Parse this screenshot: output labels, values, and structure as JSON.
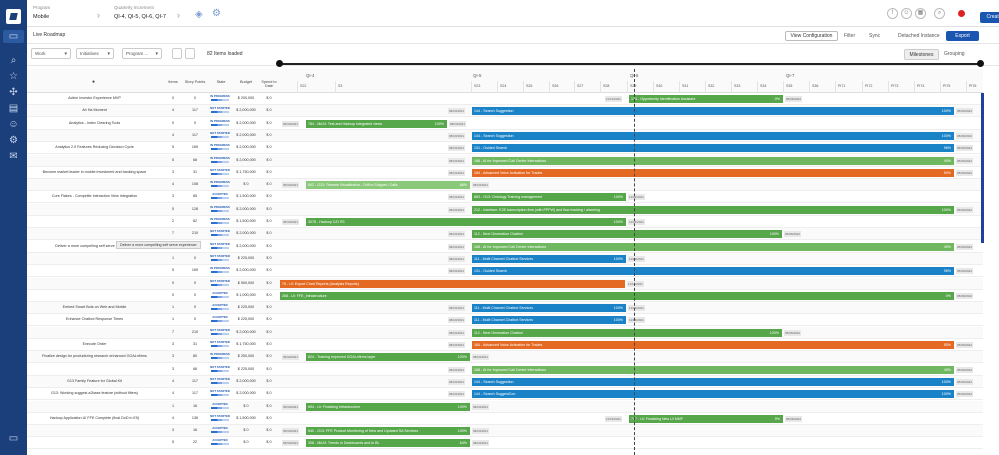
{
  "header": {
    "program_label": "Program",
    "program_value": "Mobile",
    "pi_label": "Quarterly Increment",
    "pi_value": "QI-4, QI-5, QI-6, QI-7",
    "create_label": "Create"
  },
  "subheader": {
    "title": "Live Roadmap",
    "view_configuration": "View Configuration",
    "filter": "Filter",
    "sync": "Sync",
    "detached": "Detached Instance",
    "export": "Export"
  },
  "filters": {
    "work": "Work",
    "initiatives": "Initiatives",
    "program": "Program ...",
    "items_loaded": "82 Items loaded",
    "milestones": "Milestones",
    "grouping": "Grouping"
  },
  "table": {
    "headers": [
      "Items",
      "Story Points",
      "State",
      "Budget",
      "Spend to Date"
    ],
    "rows": [
      {
        "name": "Active Investor Experience MVP",
        "items": "0",
        "sp": "0",
        "state": "IN PROGRESS",
        "budget": "$ 200,000",
        "spend": "$ 0"
      },
      {
        "name": "Ah Ha Moment",
        "items": "4",
        "sp": "117",
        "state": "NOT STARTED",
        "budget": "$ 2,000,000",
        "spend": "$ 0"
      },
      {
        "name": "Analytics - Index Clearing Tools",
        "items": "0",
        "sp": "0",
        "state": "IN PROGRESS",
        "budget": "$ 2,000,000",
        "spend": "$ 0"
      },
      {
        "name": "",
        "items": "4",
        "sp": "117",
        "state": "NOT STARTED",
        "budget": "$ 2,000,000",
        "spend": "$ 0"
      },
      {
        "name": "Analytics 2.0 Features Reducing Decision Cycle",
        "items": "5",
        "sp": "169",
        "state": "IN PROGRESS",
        "budget": "$ 2,000,000",
        "spend": "$ 0"
      },
      {
        "name": "",
        "items": "5",
        "sp": "68",
        "state": "IN PROGRESS",
        "budget": "$ 2,000,000",
        "spend": "$ 0"
      },
      {
        "name": "Become market leader in mobile investment and banking space",
        "items": "3",
        "sp": "31",
        "state": "NOT STARTED",
        "budget": "$ 1,750,000",
        "spend": "$ 0"
      },
      {
        "name": "",
        "items": "4",
        "sp": "108",
        "state": "IN PROGRESS",
        "budget": "$ 0",
        "spend": "$ 0"
      },
      {
        "name": "Core Flakes - Compelite Interaction View Integration",
        "items": "3",
        "sp": "85",
        "state": "ACCEPTED",
        "budget": "$ 1,500,000",
        "spend": "$ 0"
      },
      {
        "name": "",
        "items": "5",
        "sp": "128",
        "state": "IN PROGRESS",
        "budget": "$ 2,000,000",
        "spend": "$ 0"
      },
      {
        "name": "",
        "items": "2",
        "sp": "82",
        "state": "IN PROGRESS",
        "budget": "$ 1,500,000",
        "spend": "$ 0"
      },
      {
        "name": "",
        "items": "7",
        "sp": "210",
        "state": "NOT STARTED",
        "budget": "$ 2,000,000",
        "spend": "$ 0"
      },
      {
        "name": "Deliver a more compelling self serve experience",
        "items": "5",
        "sp": "68",
        "state": "NOT STARTED",
        "budget": "$ 2,000,000",
        "spend": "$ 0"
      },
      {
        "name": "",
        "items": "1",
        "sp": "0",
        "state": "NOT STARTED",
        "budget": "$ 225,000",
        "spend": "$ 0"
      },
      {
        "name": "",
        "items": "5",
        "sp": "169",
        "state": "IN PROGRESS",
        "budget": "$ 2,000,000",
        "spend": "$ 0"
      },
      {
        "name": "",
        "items": "0",
        "sp": "0",
        "state": "NOT STARTED",
        "budget": "$ 500,000",
        "spend": "$ 0"
      },
      {
        "name": "",
        "items": "0",
        "sp": "0",
        "state": "ACCEPTED",
        "budget": "$ 1,000,000",
        "spend": "$ 0"
      },
      {
        "name": "Embed Smart Bots on Web and Mobile",
        "items": "1",
        "sp": "0",
        "state": "ACCEPTED",
        "budget": "$ 225,000",
        "spend": "$ 0"
      },
      {
        "name": "Enhance Chatbot Response Times",
        "items": "1",
        "sp": "0",
        "state": "ACCEPTED",
        "budget": "$ 225,000",
        "spend": "$ 0"
      },
      {
        "name": "",
        "items": "7",
        "sp": "210",
        "state": "NOT STARTED",
        "budget": "$ 2,000,000",
        "spend": "$ 0"
      },
      {
        "name": "Execute Order",
        "items": "3",
        "sp": "31",
        "state": "NOT STARTED",
        "budget": "$ 1,750,000",
        "spend": "$ 0"
      },
      {
        "name": "Finalize design for productizing research enhanced GOALnfirms",
        "items": "3",
        "sp": "80",
        "state": "IN PROGRESS",
        "budget": "$ 250,000",
        "spend": "$ 0"
      },
      {
        "name": "",
        "items": "3",
        "sp": "68",
        "state": "NOT STARTED",
        "budget": "$ 225,000",
        "spend": "$ 0"
      },
      {
        "name": "G13 Family Feature for Global Kit",
        "items": "4",
        "sp": "117",
        "state": "NOT STARTED",
        "budget": "$ 2,000,000",
        "spend": "$ 0"
      },
      {
        "name": "G13: Working suggest a2base feature (without filters)",
        "items": "4",
        "sp": "117",
        "state": "NOT STARTED",
        "budget": "$ 2,000,000",
        "spend": "$ 0"
      },
      {
        "name": "",
        "items": "1",
        "sp": "16",
        "state": "ACCEPTED",
        "budget": "$ 0",
        "spend": "$ 0"
      },
      {
        "name": "Hadoop Application UI FFE Complete (final DoD in E5)",
        "items": "4",
        "sp": "136",
        "state": "NOT STARTED",
        "budget": "$ 1,500,000",
        "spend": "$ 0"
      },
      {
        "name": "",
        "items": "3",
        "sp": "16",
        "state": "ACCEPTED",
        "budget": "$ 0",
        "spend": "$ 0"
      },
      {
        "name": "",
        "items": "5",
        "sp": "22",
        "state": "ACCEPTED",
        "budget": "$ 0",
        "spend": "$ 0"
      }
    ]
  },
  "timeline": {
    "quarters": [
      "QI-4",
      "QI-5",
      "QI-6",
      "QI-7"
    ],
    "sprints": [
      "S22",
      "S3",
      "S23",
      "S24",
      "S25",
      "S26",
      "S27",
      "S28",
      "S29",
      "S30",
      "S31",
      "S32",
      "S33",
      "S34",
      "S35",
      "S36",
      "PI71",
      "PI72",
      "PI73",
      "PI74",
      "PI75",
      "PI76"
    ],
    "bars": [
      {
        "label": "174 - Opportunity Identification Assistant",
        "pct": "0%",
        "color": "green",
        "start_date": "11/12/2021",
        "end_date": "05/06/2022"
      },
      {
        "label": "144 - Search Suggestion",
        "pct": "100%",
        "color": "blue",
        "start_date": "08/23/2021",
        "end_date": "05/06/2022"
      },
      {
        "label": "784 - MAXI: Test and Hadoop integrated views",
        "pct": "100%",
        "color": "green",
        "start_date": "05/30/2021",
        "end_date": "08/23/2021"
      },
      {
        "label": "144 - Search Suggestion",
        "pct": "100%",
        "color": "blue",
        "start_date": "08/23/2021",
        "end_date": "05/06/2022"
      },
      {
        "label": "131 - Guided Search",
        "pct": "96%",
        "color": "blue",
        "start_date": "08/23/2021",
        "end_date": "05/06/2022"
      },
      {
        "label": "168 - AI for Improved Call Center Interactions",
        "pct": "40%",
        "color": "green2",
        "start_date": "08/23/2021",
        "end_date": "05/06/2022"
      },
      {
        "label": "184 - Advanced Voice Activation for Trades",
        "pct": "50%",
        "color": "orange",
        "start_date": "08/23/2021",
        "end_date": "05/06/2022"
      },
      {
        "label": "842 - G13: Themes Visualization - Drill to Snippet / Calls",
        "pct": "66%",
        "color": "lgreen",
        "start_date": "05/30/2021",
        "end_date": "08/23/2021"
      },
      {
        "label": "883 - G13: Ontology Training management",
        "pct": "100%",
        "color": "green",
        "start_date": "08/23/2021",
        "end_date": "11/14/2021"
      },
      {
        "label": "212 - Interface: E2E transcription flow (with PPFW) and flow tracking / alarming",
        "pct": "100%",
        "color": "green",
        "start_date": "08/23/2021",
        "end_date": "05/06/2022"
      },
      {
        "label": "3078 - Hadoop C/D R3",
        "pct": "100%",
        "color": "green",
        "start_date": "05/30/2021",
        "end_date": "11/14/2021"
      },
      {
        "label": "112 - Next Generation Chatbot",
        "pct": "100%",
        "color": "green",
        "start_date": "08/23/2021",
        "end_date": "05/06/2022"
      },
      {
        "label": "168 - AI for Improved Call Center Interactions",
        "pct": "40%",
        "color": "green2",
        "start_date": "08/23/2021",
        "end_date": "05/06/2022"
      },
      {
        "label": "111 - Multi Channel Chatbot Services",
        "pct": "100%",
        "color": "blue",
        "start_date": "08/23/2021",
        "end_date": "11/14/2021"
      },
      {
        "label": "131 - Guided Search",
        "pct": "96%",
        "color": "blue",
        "start_date": "08/23/2021",
        "end_date": "05/06/2022"
      },
      {
        "label": "75 - UI: Export Chart Reports (Analysis Reports)",
        "pct": "",
        "color": "orange",
        "start_date": "",
        "end_date": "11/14/2021"
      },
      {
        "label": "268 - UI: FFE_Infrastructure",
        "pct": "0%",
        "color": "green",
        "start_date": "",
        "end_date": "05/06/2022"
      },
      {
        "label": "111 - Multi Channel Chatbot Services",
        "pct": "100%",
        "color": "blue",
        "start_date": "08/23/2021",
        "end_date": "11/14/2021"
      },
      {
        "label": "111 - Multi Channel Chatbot Services",
        "pct": "100%",
        "color": "blue",
        "start_date": "08/23/2021",
        "end_date": "11/14/2021"
      },
      {
        "label": "112 - Next Generation Chatbot",
        "pct": "100%",
        "color": "green",
        "start_date": "08/23/2021",
        "end_date": "05/06/2022"
      },
      {
        "label": "184 - Advanced Voice Activation for Trades",
        "pct": "50%",
        "color": "orange",
        "start_date": "08/23/2021",
        "end_date": "05/06/2022"
      },
      {
        "label": "824 - Training improved GOALnfirms layer",
        "pct": "100%",
        "color": "green",
        "start_date": "05/30/2021",
        "end_date": "08/23/2021"
      },
      {
        "label": "168 - AI for Improved Call Center Interactions",
        "pct": "40%",
        "color": "green2",
        "start_date": "08/23/2021",
        "end_date": "05/06/2022"
      },
      {
        "label": "144 - Search Suggestion",
        "pct": "100%",
        "color": "blue",
        "start_date": "08/23/2021",
        "end_date": "05/06/2022"
      },
      {
        "label": "144 - Search SuggestCon",
        "pct": "100%",
        "color": "blue",
        "start_date": "08/23/2021",
        "end_date": "05/06/2022"
      },
      {
        "label": "694 - UI: Finalizing Infrastructure",
        "pct": "100%",
        "color": "green",
        "start_date": "05/30/2021",
        "end_date": "08/23/2021"
      },
      {
        "label": "707 - UI: Finalizing New UI MMF",
        "pct": "9%",
        "color": "green",
        "start_date": "11/15/2021",
        "end_date": "05/06/2022"
      },
      {
        "label": "540 - G13: FFE Product Monitoring of New and Updated SA Services",
        "pct": "100%",
        "color": "green",
        "start_date": "05/30/2021",
        "end_date": "08/23/2021"
      },
      {
        "label": "308 - MAXI: Trends in Dashboards and to BL",
        "pct": "64%",
        "color": "green",
        "start_date": "05/30/2021",
        "end_date": "08/23/2021"
      }
    ]
  },
  "tooltip": "Deliver a more compelling self serve experience"
}
